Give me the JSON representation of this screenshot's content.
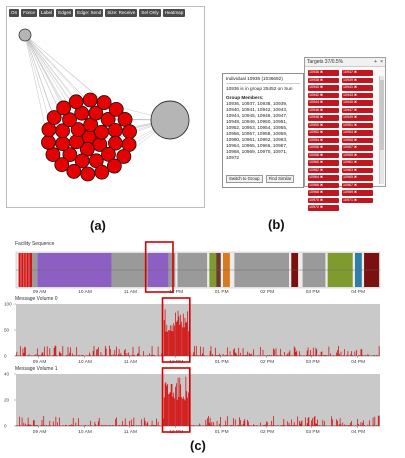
{
  "toolbar": {
    "buttons": [
      "On",
      "Force",
      "Label",
      "Edges",
      "Edge: Send",
      "Size: Receive",
      "Sel Only",
      "Heatmap"
    ]
  },
  "figure_labels": {
    "a": "(a)",
    "b": "(b)",
    "c": "(c)"
  },
  "targets": {
    "title": "Targets 37/0.5%",
    "controls": [
      "+",
      "×"
    ],
    "tags": [
      "10936 ✖",
      "10937 ✖",
      "10938 ✖",
      "10939 ✖",
      "10940 ✖",
      "10941 ✖",
      "10942 ✖",
      "10943 ✖",
      "10944 ✖",
      "10945 ✖",
      "10946 ✖",
      "10947 ✖",
      "10948 ✖",
      "10949 ✖",
      "10950 ✖",
      "10951 ✖",
      "10952 ✖",
      "10953 ✖",
      "10954 ✖",
      "10955 ✖",
      "10956 ✖",
      "10957 ✖",
      "10958 ✖",
      "10959 ✖",
      "10960 ✖",
      "10961 ✖",
      "10962 ✖",
      "10963 ✖",
      "10964 ✖",
      "10965 ✖",
      "10966 ✖",
      "10967 ✖",
      "10968 ✖",
      "10969 ✖",
      "10970 ✖",
      "10971 ✖",
      "10972 ✖"
    ]
  },
  "individual": {
    "title": "Individual 10936 (1036692)",
    "group_line": "10936 is in group 25452 on Sun",
    "members_heading": "Group Members:",
    "members_text": "10936, 10937, 10938, 10939,\n10940, 10941, 10942, 10943,\n10944, 10945, 10946, 10947,\n10948, 10949, 10950, 10951,\n10952, 10953, 10954, 10955,\n10956, 10957, 10958, 10959,\n10960, 10961, 10962, 10963,\n10964, 10965, 10966, 10967,\n10968, 10969, 10970, 10971,\n10972",
    "buttons": [
      "Switch to Group",
      "Find Similar"
    ]
  },
  "timeline": {
    "seq_title": "Facility Sequence",
    "vol0_title": "Message Volume 0",
    "vol1_title": "Message Volume 1",
    "time_ticks": [
      "09 AM",
      "10 AM",
      "11 AM",
      "12 PM",
      "01 PM",
      "02 PM",
      "03 PM",
      "04 PM"
    ],
    "vol0_yticks": [
      "100",
      "50",
      "0"
    ],
    "vol1_yticks": [
      "40",
      "20",
      "0"
    ],
    "colors": {
      "red": "#cc0000",
      "purple": "#8d5fc2",
      "gray": "#9a9a9a",
      "olive": "#7f9a2e",
      "brown": "#6b3a2a",
      "orange": "#d87a1e",
      "teal": "#2f7ea8",
      "darkred": "#7a1010",
      "highlight": "#d60000"
    }
  }
}
